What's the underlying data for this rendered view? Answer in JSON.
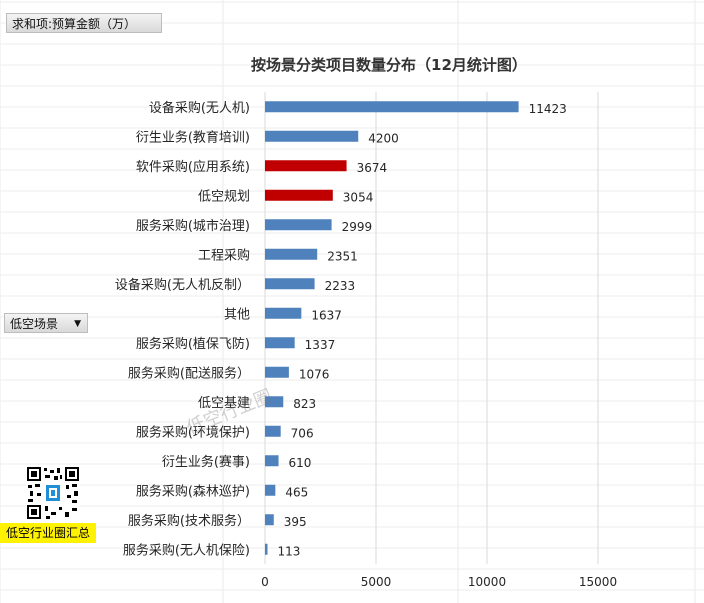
{
  "pivot": {
    "values_field": "求和项:预算金额（万）",
    "row_field": "低空场景",
    "row_field_arrow": "▼"
  },
  "overlay": {
    "qr_caption": "低空行业圈汇总",
    "watermark": "低空行业圈"
  },
  "colors": {
    "default_bar": "#4f81bd",
    "highlight_bar": "#c00000",
    "gridline": "#d9d9d9",
    "text": "#262626"
  },
  "chart_data": {
    "type": "bar",
    "orientation": "horizontal",
    "title": "按场景分类项目数量分布（12月统计图）",
    "categories": [
      "设备采购(无人机)",
      "衍生业务(教育培训)",
      "软件采购(应用系统)",
      "低空规划",
      "服务采购(城市治理)",
      "工程采购",
      "设备采购(无人机反制）",
      "其他",
      "服务采购(植保飞防)",
      "服务采购(配送服务）",
      "低空基建",
      "服务采购(环境保护)",
      "衍生业务(赛事)",
      "服务采购(森林巡护)",
      "服务采购(技术服务）",
      "服务采购(无人机保险)"
    ],
    "values": [
      11423,
      4200,
      3674,
      3054,
      2999,
      2351,
      2233,
      1637,
      1337,
      1076,
      823,
      706,
      610,
      465,
      395,
      113
    ],
    "data_labels": [
      "11423",
      "4200",
      "3674",
      "3054",
      "2999",
      "2351",
      "2233",
      "1637",
      "1337",
      "1076",
      "823",
      "706",
      "610",
      "465",
      "395",
      "113"
    ],
    "highlighted": [
      "软件采购(应用系统)",
      "低空规划"
    ],
    "xlim": [
      0,
      15000
    ],
    "xticks": [
      0,
      5000,
      10000,
      15000
    ],
    "xtick_labels": [
      "0",
      "5000",
      "10000",
      "15000"
    ],
    "grid": "vertical",
    "legend": "none"
  }
}
